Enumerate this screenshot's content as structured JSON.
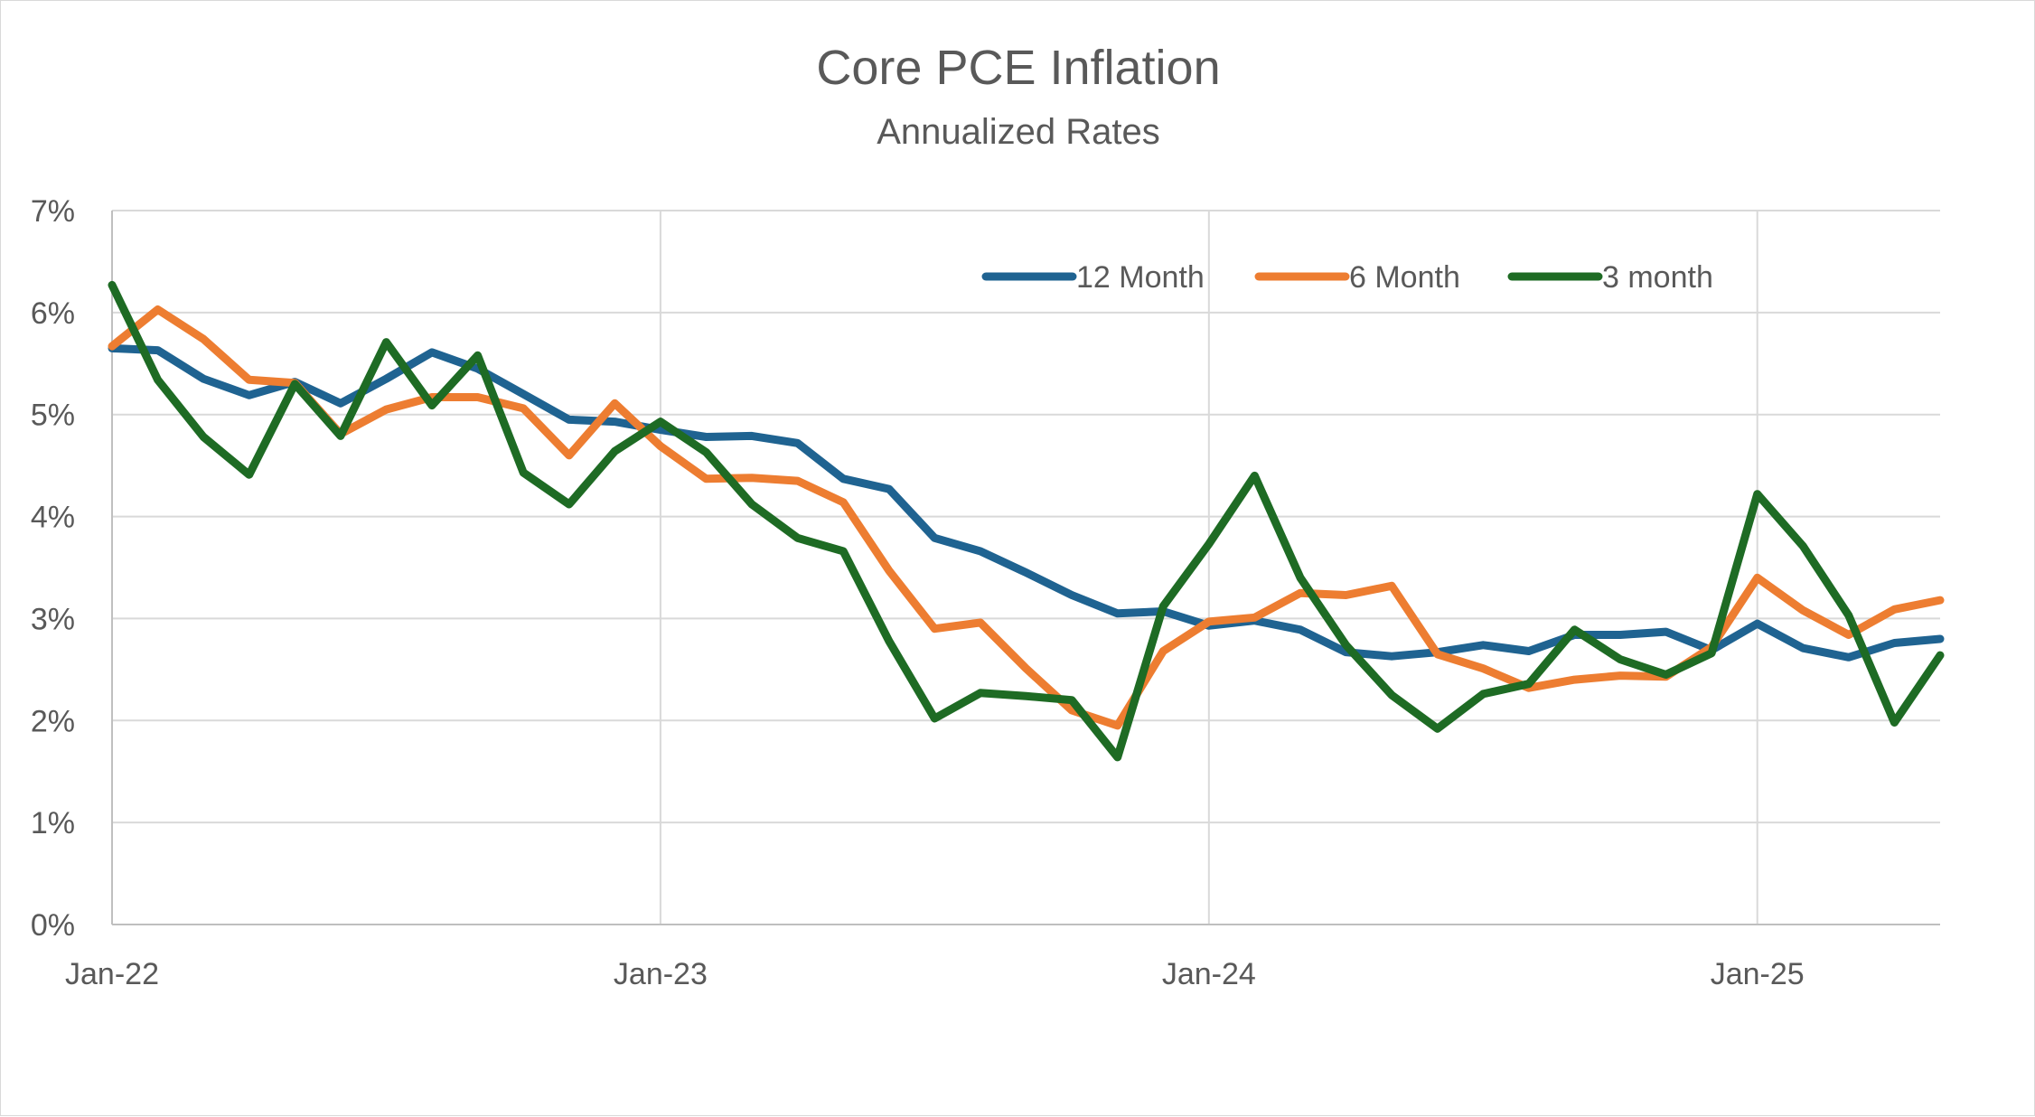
{
  "chart_data": {
    "type": "line",
    "title": "Core PCE Inflation",
    "subtitle": "Annualized Rates",
    "ylim": [
      0,
      7
    ],
    "y_ticks": [
      "0%",
      "1%",
      "2%",
      "3%",
      "4%",
      "5%",
      "6%",
      "7%"
    ],
    "x_ticks": [
      "Jan-22",
      "Jan-23",
      "Jan-24",
      "Jan-25"
    ],
    "x_range_months": {
      "start": "Jan-22",
      "end": "May-25"
    },
    "grid": true,
    "legend_position": "top-right",
    "x": [
      "Jan-22",
      "Feb-22",
      "Mar-22",
      "Apr-22",
      "May-22",
      "Jun-22",
      "Jul-22",
      "Aug-22",
      "Sep-22",
      "Oct-22",
      "Nov-22",
      "Dec-22",
      "Jan-23",
      "Feb-23",
      "Mar-23",
      "Apr-23",
      "May-23",
      "Jun-23",
      "Jul-23",
      "Aug-23",
      "Sep-23",
      "Oct-23",
      "Nov-23",
      "Dec-23",
      "Jan-24",
      "Feb-24",
      "Mar-24",
      "Apr-24",
      "May-24",
      "Jun-24",
      "Jul-24",
      "Aug-24",
      "Sep-24",
      "Oct-24",
      "Nov-24",
      "Dec-24",
      "Jan-25",
      "Feb-25",
      "Mar-25",
      "Apr-25",
      "May-25"
    ],
    "series": [
      {
        "name": "12 Month",
        "color": "#1f6391",
        "values": [
          5.65,
          5.63,
          5.35,
          5.19,
          5.32,
          5.11,
          5.35,
          5.61,
          5.45,
          5.2,
          4.95,
          4.93,
          4.85,
          4.78,
          4.79,
          4.72,
          4.37,
          4.27,
          3.79,
          3.66,
          3.45,
          3.23,
          3.05,
          3.07,
          2.93,
          2.98,
          2.89,
          2.67,
          2.63,
          2.67,
          2.74,
          2.68,
          2.84,
          2.84,
          2.87,
          2.69,
          2.95,
          2.71,
          2.62,
          2.76,
          2.8
        ]
      },
      {
        "name": "6 Month",
        "color": "#ed7d31",
        "values": [
          5.67,
          6.03,
          5.74,
          5.34,
          5.31,
          4.81,
          5.05,
          5.17,
          5.17,
          5.06,
          4.6,
          5.11,
          4.69,
          4.37,
          4.38,
          4.35,
          4.14,
          3.47,
          2.9,
          2.96,
          2.51,
          2.1,
          1.95,
          2.68,
          2.97,
          3.01,
          3.25,
          3.23,
          3.32,
          2.65,
          2.51,
          2.32,
          2.4,
          2.44,
          2.43,
          2.72,
          3.4,
          3.08,
          2.84,
          3.09,
          3.18
        ]
      },
      {
        "name": "3 month",
        "color": "#1e6b24",
        "values": [
          6.27,
          5.34,
          4.78,
          4.41,
          5.3,
          4.79,
          5.71,
          5.09,
          5.58,
          4.43,
          4.12,
          4.64,
          4.93,
          4.63,
          4.12,
          3.79,
          3.66,
          2.78,
          2.02,
          2.27,
          2.24,
          2.2,
          1.64,
          3.12,
          3.73,
          4.4,
          3.4,
          2.74,
          2.25,
          1.92,
          2.26,
          2.36,
          2.89,
          2.6,
          2.45,
          2.66,
          4.22,
          3.71,
          3.03,
          1.98,
          2.64
        ]
      }
    ]
  }
}
